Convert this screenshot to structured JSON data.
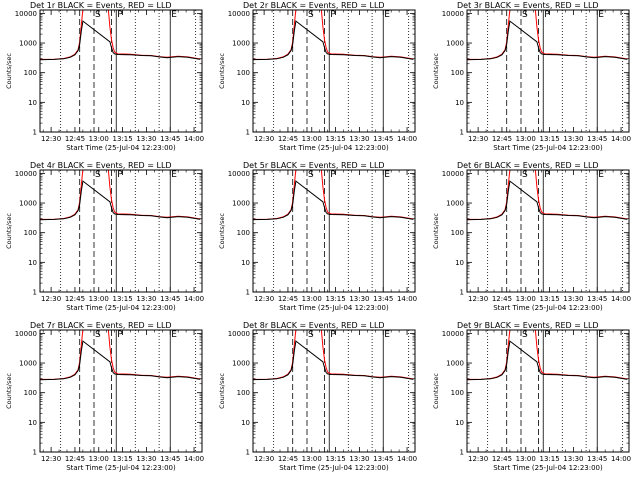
{
  "chart_data": [
    {
      "type": "line",
      "title": "Det 1r BLACK = Events, RED = LLD"
    },
    {
      "type": "line",
      "title": "Det 2r BLACK = Events, RED = LLD"
    },
    {
      "type": "line",
      "title": "Det 3r BLACK = Events, RED = LLD"
    },
    {
      "type": "line",
      "title": "Det 4r BLACK = Events, RED = LLD"
    },
    {
      "type": "line",
      "title": "Det 5r BLACK = Events, RED = LLD"
    },
    {
      "type": "line",
      "title": "Det 6r BLACK = Events, RED = LLD"
    },
    {
      "type": "line",
      "title": "Det 7r BLACK = Events, RED = LLD"
    },
    {
      "type": "line",
      "title": "Det 8r BLACK = Events, RED = LLD"
    },
    {
      "type": "line",
      "title": "Det 9r BLACK = Events, RED = LLD"
    }
  ],
  "common": {
    "xlabel": "Start Time (25-Jul-04 12:23:00)",
    "ylabel": "Counts/sec",
    "x_ticks": [
      "12:30",
      "12:45",
      "13:00",
      "13:15",
      "13:30",
      "13:45",
      "14:00"
    ],
    "x_tick_minutes": [
      30,
      45,
      60,
      75,
      90,
      105,
      120
    ],
    "xlim_minutes": [
      23,
      125
    ],
    "y_ticks": [
      "1",
      "10",
      "100",
      "1000",
      "10000"
    ],
    "y_tick_values": [
      1,
      10,
      100,
      1000,
      10000
    ],
    "ylim": [
      1,
      13000
    ],
    "y_scale": "log",
    "markers": [
      {
        "label": "S",
        "minute": 57,
        "style": "dashed"
      },
      {
        "label": "P",
        "minute": 71,
        "style": "solid"
      },
      {
        "label": "E",
        "minute": 105,
        "style": "solid"
      }
    ],
    "lines": [
      {
        "minute": 36,
        "style": "dotted"
      },
      {
        "minute": 48,
        "style": "dashed"
      },
      {
        "minute": 68,
        "style": "dashed"
      },
      {
        "minute": 83,
        "style": "dotted"
      },
      {
        "minute": 98,
        "style": "dotted"
      },
      {
        "minute": 121,
        "style": "dotted"
      }
    ],
    "series": [
      {
        "name": "LLD",
        "color": "#ff0000",
        "points": [
          [
            23,
            280
          ],
          [
            32,
            285
          ],
          [
            38,
            300
          ],
          [
            42,
            340
          ],
          [
            45,
            420
          ],
          [
            47,
            600
          ],
          [
            48,
            1100
          ],
          [
            49,
            4000
          ],
          [
            50,
            14000
          ],
          [
            66,
            14000
          ],
          [
            67,
            3500
          ],
          [
            68,
            1300
          ],
          [
            69,
            700
          ],
          [
            70,
            500
          ],
          [
            72,
            430
          ],
          [
            80,
            420
          ],
          [
            87,
            390
          ],
          [
            93,
            380
          ],
          [
            98,
            350
          ],
          [
            103,
            330
          ],
          [
            110,
            360
          ],
          [
            116,
            340
          ],
          [
            124,
            290
          ]
        ]
      },
      {
        "name": "Events",
        "color": "#000000",
        "points": [
          [
            23,
            275
          ],
          [
            32,
            280
          ],
          [
            38,
            295
          ],
          [
            42,
            330
          ],
          [
            45,
            400
          ],
          [
            47,
            560
          ],
          [
            48,
            900
          ],
          [
            49,
            2500
          ],
          [
            50,
            5500
          ],
          [
            67,
            1100
          ],
          [
            68,
            700
          ],
          [
            69,
            480
          ],
          [
            70,
            430
          ],
          [
            72,
            410
          ],
          [
            80,
            400
          ],
          [
            87,
            380
          ],
          [
            93,
            370
          ],
          [
            98,
            340
          ],
          [
            103,
            320
          ],
          [
            110,
            350
          ],
          [
            116,
            330
          ],
          [
            124,
            280
          ]
        ]
      }
    ]
  }
}
